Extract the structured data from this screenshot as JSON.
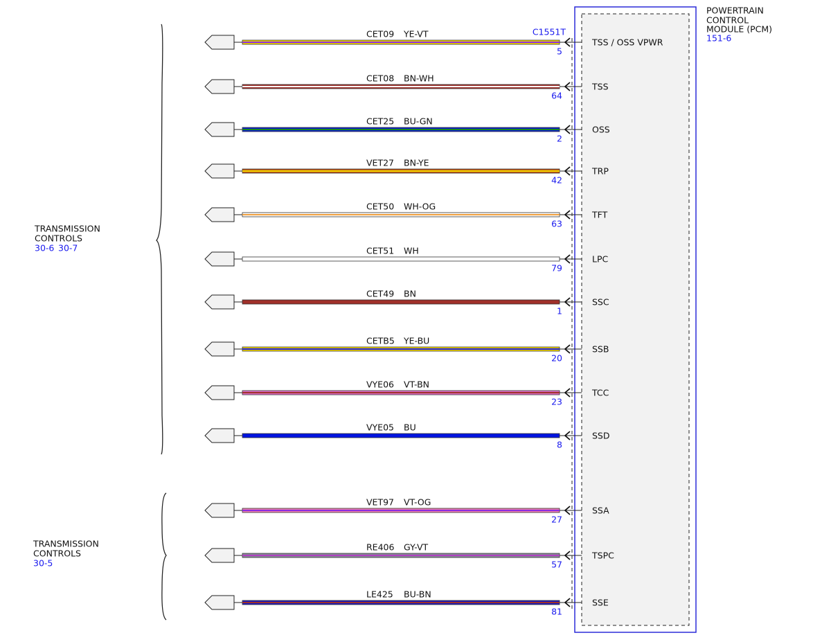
{
  "module": {
    "title": [
      "POWERTRAIN",
      "CONTROL",
      "MODULE (PCM)"
    ],
    "ref": "151-6",
    "connector": "C1551T"
  },
  "groups": [
    {
      "label": [
        "TRANSMISSION",
        "CONTROLS"
      ],
      "refs": [
        "30-6",
        "30-7"
      ]
    },
    {
      "label": [
        "TRANSMISSION",
        "CONTROLS"
      ],
      "refs": [
        "30-5"
      ]
    }
  ],
  "wires": [
    {
      "circuit": "CET09",
      "code": "YE-VT",
      "pin": "5",
      "signal": "TSS / OSS VPWR"
    },
    {
      "circuit": "CET08",
      "code": "BN-WH",
      "pin": "64",
      "signal": "TSS"
    },
    {
      "circuit": "CET25",
      "code": "BU-GN",
      "pin": "2",
      "signal": "OSS"
    },
    {
      "circuit": "VET27",
      "code": "BN-YE",
      "pin": "42",
      "signal": "TRP"
    },
    {
      "circuit": "CET50",
      "code": "WH-OG",
      "pin": "63",
      "signal": "TFT"
    },
    {
      "circuit": "CET51",
      "code": "WH",
      "pin": "79",
      "signal": "LPC"
    },
    {
      "circuit": "CET49",
      "code": "BN",
      "pin": "1",
      "signal": "SSC"
    },
    {
      "circuit": "CETB5",
      "code": "YE-BU",
      "pin": "20",
      "signal": "SSB"
    },
    {
      "circuit": "VYE06",
      "code": "VT-BN",
      "pin": "23",
      "signal": "TCC"
    },
    {
      "circuit": "VYE05",
      "code": "BU",
      "pin": "8",
      "signal": "SSD"
    },
    {
      "circuit": "VET97",
      "code": "VT-OG",
      "pin": "27",
      "signal": "SSA"
    },
    {
      "circuit": "RE406",
      "code": "GY-VT",
      "pin": "57",
      "signal": "TSPC"
    },
    {
      "circuit": "LE425",
      "code": "BU-BN",
      "pin": "81",
      "signal": "SSE"
    }
  ]
}
